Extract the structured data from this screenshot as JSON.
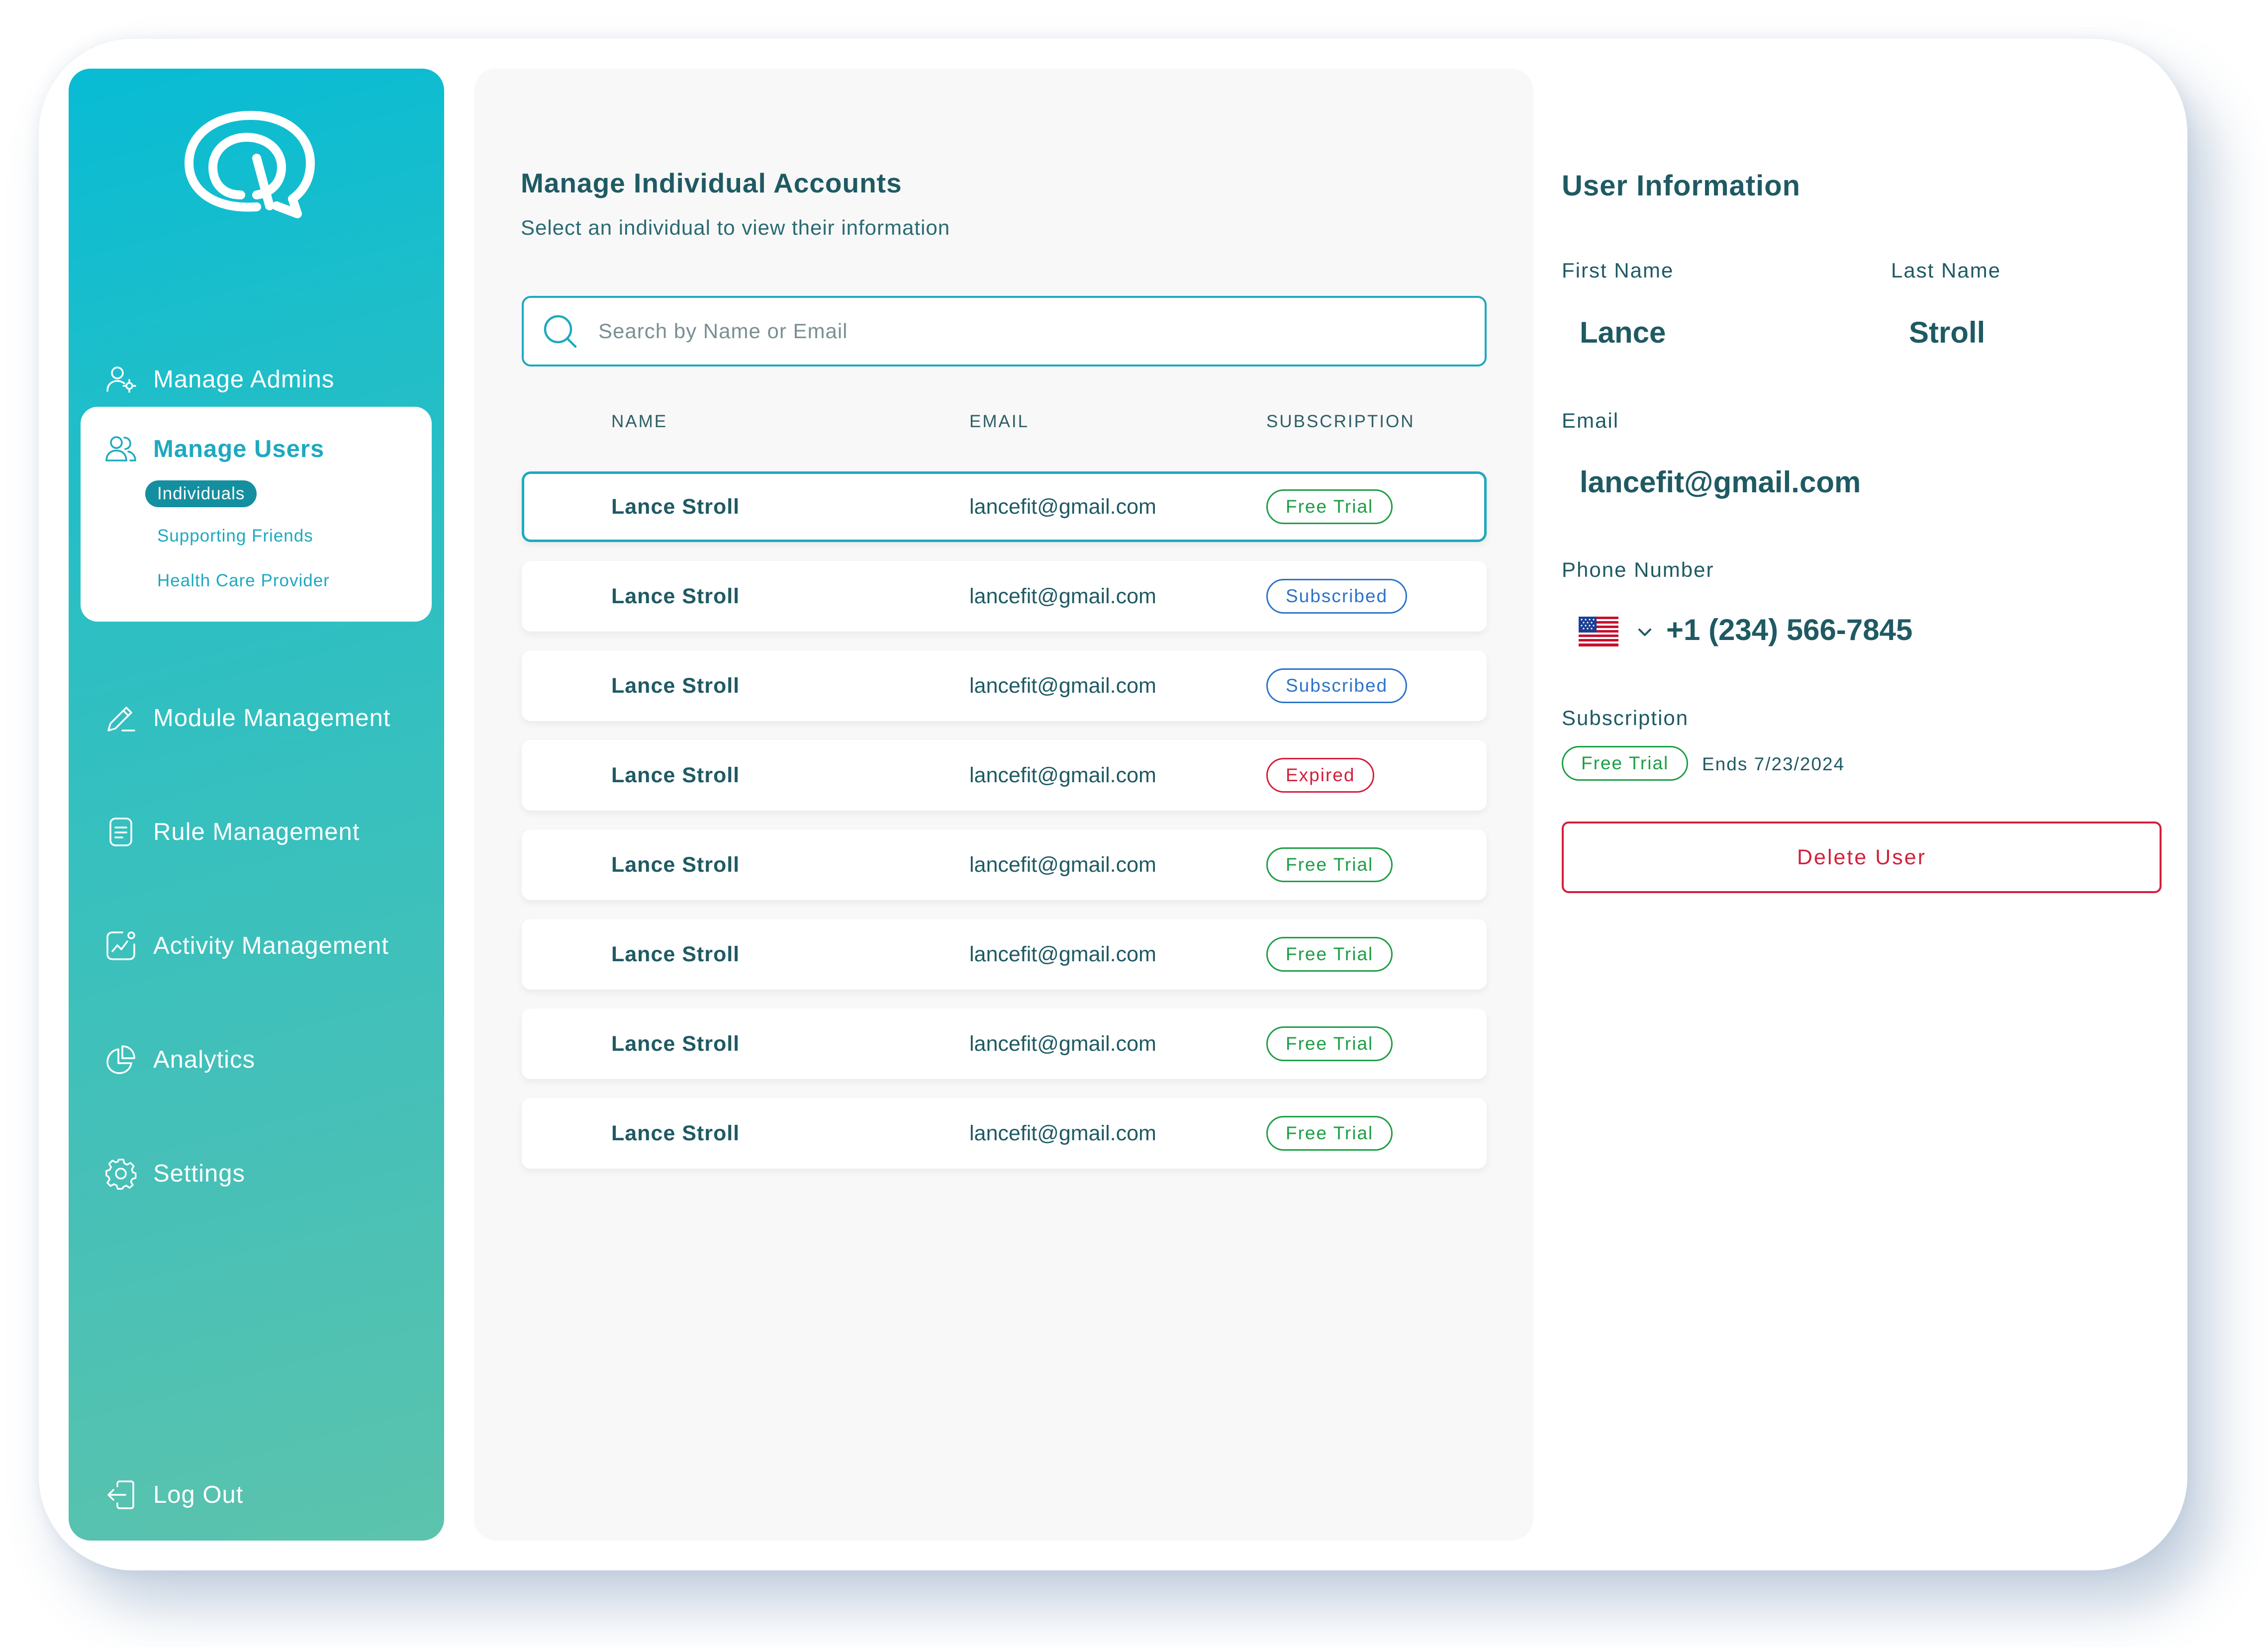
{
  "colors": {
    "accent": "#1ea9c0",
    "sidebar_gradient": [
      "#08bcd4",
      "#5cc3ad"
    ],
    "text": "#1f5a63",
    "trial": "#1e9e46",
    "subscribed": "#2d73c9",
    "expired": "#d41f3b"
  },
  "sidebar": {
    "logo_icon": "chat-bubble-logo-icon",
    "items": [
      {
        "label": "Manage Admins",
        "icon": "user-gear-icon"
      },
      {
        "label": "Manage Users",
        "icon": "users-icon",
        "active": true,
        "subitems": [
          "Individuals",
          "Supporting Friends",
          "Health Care Provider"
        ],
        "active_subitem": "Individuals"
      },
      {
        "label": "Module Management",
        "icon": "pencil-icon"
      },
      {
        "label": "Rule Management",
        "icon": "document-icon"
      },
      {
        "label": "Activity Management",
        "icon": "activity-chart-icon"
      },
      {
        "label": "Analytics",
        "icon": "pie-chart-icon"
      },
      {
        "label": "Settings",
        "icon": "gear-icon"
      }
    ],
    "logout": {
      "label": "Log Out",
      "icon": "logout-icon"
    }
  },
  "main": {
    "title": "Manage Individual Accounts",
    "subtitle": "Select an individual to view their information",
    "search": {
      "placeholder": "Search by Name or Email",
      "icon": "search-icon"
    },
    "columns": {
      "name": "NAME",
      "email": "EMAIL",
      "subscription": "SUBSCRIPTION"
    },
    "rows": [
      {
        "name": "Lance Stroll",
        "email": "lancefit@gmail.com",
        "subscription": "Free Trial",
        "status": "trial",
        "selected": true
      },
      {
        "name": "Lance Stroll",
        "email": "lancefit@gmail.com",
        "subscription": "Subscribed",
        "status": "subscribed"
      },
      {
        "name": "Lance Stroll",
        "email": "lancefit@gmail.com",
        "subscription": "Subscribed",
        "status": "subscribed"
      },
      {
        "name": "Lance Stroll",
        "email": "lancefit@gmail.com",
        "subscription": "Expired",
        "status": "expired"
      },
      {
        "name": "Lance Stroll",
        "email": "lancefit@gmail.com",
        "subscription": "Free Trial",
        "status": "trial"
      },
      {
        "name": "Lance Stroll",
        "email": "lancefit@gmail.com",
        "subscription": "Free Trial",
        "status": "trial"
      },
      {
        "name": "Lance Stroll",
        "email": "lancefit@gmail.com",
        "subscription": "Free Trial",
        "status": "trial"
      },
      {
        "name": "Lance Stroll",
        "email": "lancefit@gmail.com",
        "subscription": "Free Trial",
        "status": "trial"
      }
    ]
  },
  "user_info": {
    "title": "User Information",
    "first_name_label": "First Name",
    "first_name": "Lance",
    "last_name_label": "Last Name",
    "last_name": "Stroll",
    "email_label": "Email",
    "email": "lancefit@gmail.com",
    "phone_label": "Phone Number",
    "phone_flag_icon": "us-flag-icon",
    "phone": "+1 (234) 566-7845",
    "subscription_label": "Subscription",
    "subscription": "Free Trial",
    "subscription_ends": "Ends 7/23/2024",
    "delete_label": "Delete User"
  }
}
